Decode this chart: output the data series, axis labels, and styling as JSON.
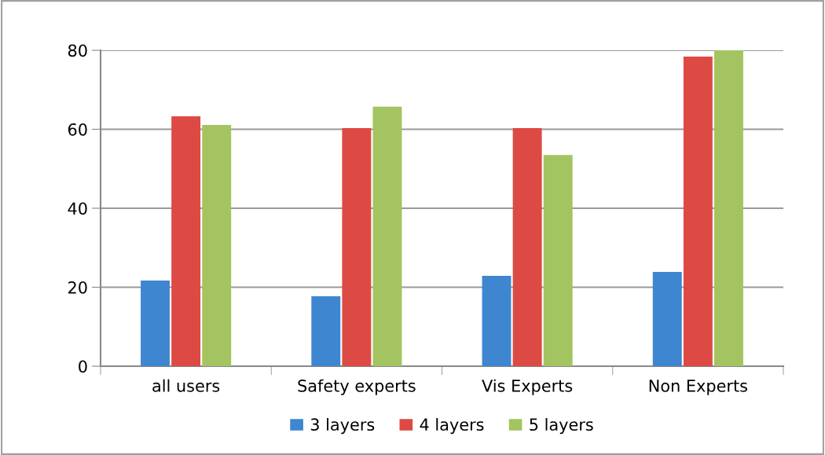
{
  "chart_data": {
    "type": "bar",
    "categories": [
      "all users",
      "Safety experts",
      "Vis Experts",
      "Non Experts"
    ],
    "series": [
      {
        "name": "3 layers",
        "color": "#3f86d0",
        "values": [
          21.7,
          17.7,
          22.9,
          23.9
        ]
      },
      {
        "name": "4 layers",
        "color": "#dd4a44",
        "values": [
          63.3,
          60.3,
          60.3,
          78.4
        ]
      },
      {
        "name": "5 layers",
        "color": "#a3c460",
        "values": [
          61.1,
          65.7,
          53.5,
          80
        ]
      }
    ],
    "ylim": [
      0,
      80
    ],
    "yticks": [
      0,
      20,
      40,
      60,
      80
    ],
    "grid": "y",
    "legend": "bottom"
  }
}
